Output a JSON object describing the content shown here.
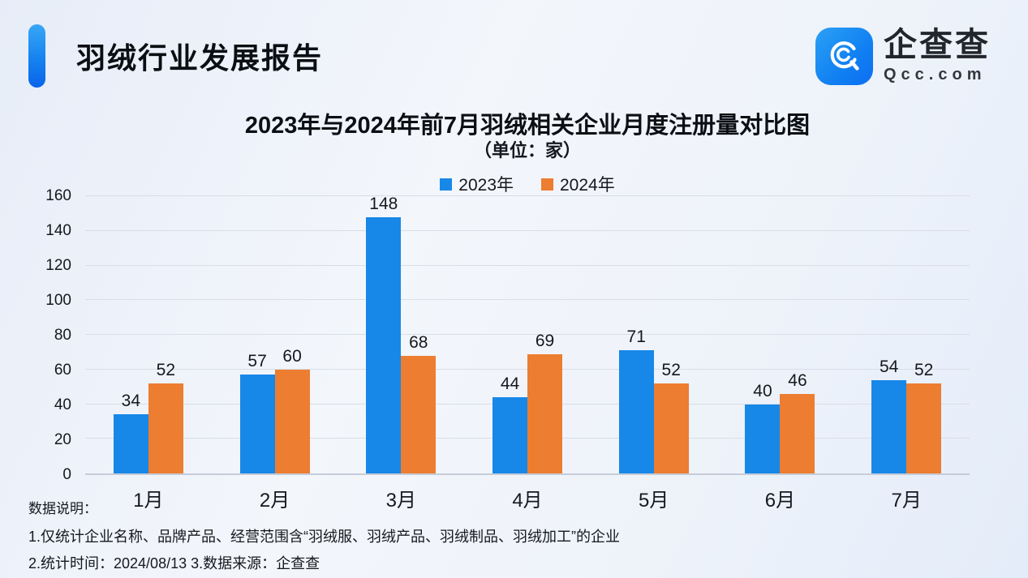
{
  "header": {
    "title": "羽绒行业发展报告"
  },
  "logo": {
    "name": "企查查",
    "domain": "Qcc.com"
  },
  "chart_data": {
    "type": "bar",
    "title": "2023年与2024年前7月羽绒相关企业月度注册量对比图",
    "subtitle": "（单位：家）",
    "categories": [
      "1月",
      "2月",
      "3月",
      "4月",
      "5月",
      "6月",
      "7月"
    ],
    "series": [
      {
        "name": "2023年",
        "color": "#1787e8",
        "values": [
          34,
          57,
          148,
          44,
          71,
          40,
          54
        ]
      },
      {
        "name": "2024年",
        "color": "#ed7d31",
        "values": [
          52,
          60,
          68,
          69,
          52,
          46,
          52
        ]
      }
    ],
    "xlabel": "",
    "ylabel": "",
    "ylim": [
      0,
      160
    ],
    "ytick_step": 20,
    "grid": true,
    "legend_position": "top"
  },
  "footnotes": {
    "label": "数据说明：",
    "items": [
      "1.仅统计企业名称、品牌产品、经营范围含“羽绒服、羽绒产品、羽绒制品、羽绒加工”的企业",
      "2.统计时间：2024/08/13    3.数据来源：企查查"
    ]
  },
  "colors": {
    "accent_blue": "#1583ef",
    "series_2023": "#1787e8",
    "series_2024": "#ed7d31",
    "gridline": "#d8dde7"
  }
}
